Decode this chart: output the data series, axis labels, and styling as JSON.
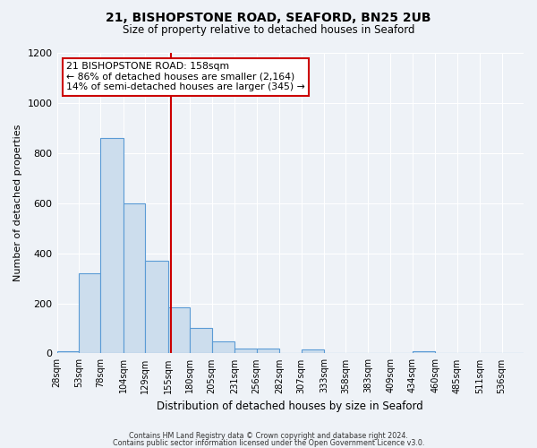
{
  "title": "21, BISHOPSTONE ROAD, SEAFORD, BN25 2UB",
  "subtitle": "Size of property relative to detached houses in Seaford",
  "xlabel": "Distribution of detached houses by size in Seaford",
  "ylabel": "Number of detached properties",
  "bar_color": "#ccdded",
  "bar_edge_color": "#5b9bd5",
  "background_color": "#eef2f7",
  "plot_bg_color": "#eef2f7",
  "grid_color": "#ffffff",
  "bin_labels": [
    "28sqm",
    "53sqm",
    "78sqm",
    "104sqm",
    "129sqm",
    "155sqm",
    "180sqm",
    "205sqm",
    "231sqm",
    "256sqm",
    "282sqm",
    "307sqm",
    "333sqm",
    "358sqm",
    "383sqm",
    "409sqm",
    "434sqm",
    "460sqm",
    "485sqm",
    "511sqm",
    "536sqm"
  ],
  "bin_left": [
    28,
    53,
    78,
    104,
    129,
    155,
    180,
    205,
    231,
    256,
    282,
    307,
    333,
    358,
    383,
    409,
    434,
    460,
    485,
    511,
    536
  ],
  "bin_right": [
    53,
    78,
    104,
    129,
    155,
    180,
    205,
    231,
    256,
    282,
    307,
    333,
    358,
    383,
    409,
    434,
    460,
    485,
    511,
    536,
    561
  ],
  "bin_counts": [
    10,
    320,
    860,
    600,
    370,
    185,
    100,
    47,
    20,
    18,
    0,
    17,
    0,
    0,
    0,
    0,
    8,
    0,
    0,
    0,
    3
  ],
  "vline_x": 158,
  "vline_color": "#cc0000",
  "annotation_title": "21 BISHOPSTONE ROAD: 158sqm",
  "annotation_line1": "← 86% of detached houses are smaller (2,164)",
  "annotation_line2": "14% of semi-detached houses are larger (345) →",
  "annotation_box_color": "white",
  "annotation_box_edge": "#cc0000",
  "ylim": [
    0,
    1200
  ],
  "yticks": [
    0,
    200,
    400,
    600,
    800,
    1000,
    1200
  ],
  "footer1": "Contains HM Land Registry data © Crown copyright and database right 2024.",
  "footer2": "Contains public sector information licensed under the Open Government Licence v3.0."
}
